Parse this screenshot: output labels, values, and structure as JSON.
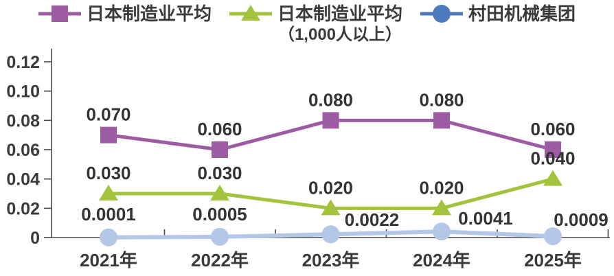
{
  "legend": {
    "items": [
      {
        "label": "日本制造业平均",
        "marker": "square",
        "color": "#9c5ba3"
      },
      {
        "label": "日本制造业平均",
        "sublabel": "（1,000人以上）",
        "marker": "triangle",
        "color": "#a3c33c"
      },
      {
        "label": "村田机械集团",
        "marker": "circle",
        "color": "#4b7abc"
      }
    ]
  },
  "chart_data": {
    "type": "line",
    "title": "",
    "xlabel": "",
    "ylabel": "",
    "categories": [
      "2021年",
      "2022年",
      "2023年",
      "2024年",
      "2025年"
    ],
    "series": [
      {
        "name": "日本制造业平均",
        "marker": "square",
        "color": "#9c5ba3",
        "values": [
          0.07,
          0.06,
          0.08,
          0.08,
          0.06
        ],
        "labels": [
          "0.070",
          "0.060",
          "0.080",
          "0.080",
          "0.060"
        ]
      },
      {
        "name": "日本制造业平均（1,000人以上）",
        "marker": "triangle",
        "color": "#a3c33c",
        "values": [
          0.03,
          0.03,
          0.02,
          0.02,
          0.04
        ],
        "labels": [
          "0.030",
          "0.030",
          "0.020",
          "0.020",
          "0.040"
        ]
      },
      {
        "name": "村田机械集团",
        "marker": "circle",
        "color": "#b4c7e7",
        "values": [
          0.0001,
          0.0005,
          0.0022,
          0.0041,
          0.0009
        ],
        "labels": [
          "0.0001",
          "0.0005",
          "0.0022",
          "0.0041",
          "0.0009"
        ]
      }
    ],
    "yticks": [
      "0.12",
      "0.10",
      "0.08",
      "0.06",
      "0.04",
      "0.02",
      "0"
    ],
    "ylim": [
      0,
      0.12
    ],
    "grid": false,
    "legend_position": "top",
    "axis_color": "#4a4a4a"
  }
}
